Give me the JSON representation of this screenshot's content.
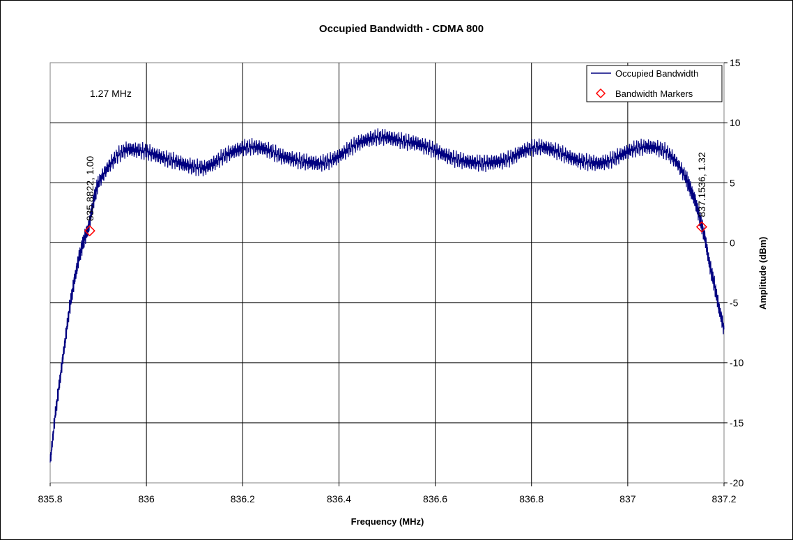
{
  "chart_data": {
    "type": "scatter",
    "title": "Occupied Bandwidth - CDMA 800",
    "xlabel": "Frequency (MHz)",
    "ylabel": "Amplitude (dBm)",
    "xlim": [
      835.8,
      837.2
    ],
    "ylim": [
      -20,
      15
    ],
    "x_ticks": [
      "835.8",
      "836",
      "836.2",
      "836.4",
      "836.6",
      "836.8",
      "837",
      "837.2"
    ],
    "y_ticks": [
      "15",
      "10",
      "5",
      "0",
      "-5",
      "-10",
      "-15",
      "-20"
    ],
    "y_axis_side": "right",
    "grid": true,
    "legend_position": "top-right",
    "annotation": "1.27 MHz",
    "series": [
      {
        "name": "Occupied Bandwidth",
        "color": "#000080",
        "style": "line",
        "x": [
          835.8,
          835.81,
          835.82,
          835.83,
          835.84,
          835.85,
          835.86,
          835.87,
          835.88,
          835.89,
          835.9,
          835.92,
          835.94,
          835.96,
          835.98,
          836.0,
          836.02,
          836.04,
          836.06,
          836.08,
          836.1,
          836.12,
          836.14,
          836.16,
          836.18,
          836.2,
          836.22,
          836.24,
          836.26,
          836.28,
          836.3,
          836.32,
          836.34,
          836.36,
          836.38,
          836.4,
          836.42,
          836.44,
          836.46,
          836.48,
          836.5,
          836.52,
          836.54,
          836.56,
          836.58,
          836.6,
          836.62,
          836.64,
          836.66,
          836.68,
          836.7,
          836.72,
          836.74,
          836.76,
          836.78,
          836.8,
          836.82,
          836.84,
          836.86,
          836.88,
          836.9,
          836.92,
          836.94,
          836.96,
          836.98,
          837.0,
          837.02,
          837.04,
          837.06,
          837.08,
          837.1,
          837.12,
          837.13,
          837.14,
          837.15,
          837.16,
          837.17,
          837.18,
          837.19,
          837.2
        ],
        "y": [
          -18.3,
          -14.5,
          -11.5,
          -8.5,
          -5.5,
          -3.2,
          -1.2,
          0.2,
          1.3,
          3.5,
          5.0,
          6.3,
          7.3,
          7.8,
          7.7,
          7.6,
          7.3,
          7.0,
          6.8,
          6.5,
          6.3,
          6.2,
          6.6,
          7.2,
          7.6,
          7.9,
          8.0,
          7.9,
          7.6,
          7.2,
          7.0,
          6.8,
          6.7,
          6.6,
          6.8,
          7.2,
          7.8,
          8.3,
          8.6,
          8.8,
          8.8,
          8.6,
          8.4,
          8.3,
          8.0,
          7.7,
          7.3,
          7.0,
          6.8,
          6.7,
          6.6,
          6.7,
          6.8,
          7.1,
          7.6,
          7.9,
          8.0,
          7.8,
          7.5,
          7.1,
          6.8,
          6.7,
          6.6,
          6.8,
          7.2,
          7.6,
          7.9,
          8.0,
          7.9,
          7.6,
          6.8,
          5.5,
          4.5,
          3.5,
          2.0,
          0.5,
          -1.8,
          -3.5,
          -5.5,
          -7.2
        ]
      },
      {
        "name": "Bandwidth Markers",
        "color": "#ff0000",
        "style": "marker",
        "x": [
          835.8822,
          837.1536
        ],
        "y": [
          1.0,
          1.32
        ],
        "labels": [
          "835.8822, 1.00",
          "837.1536, 1.32"
        ]
      }
    ]
  }
}
